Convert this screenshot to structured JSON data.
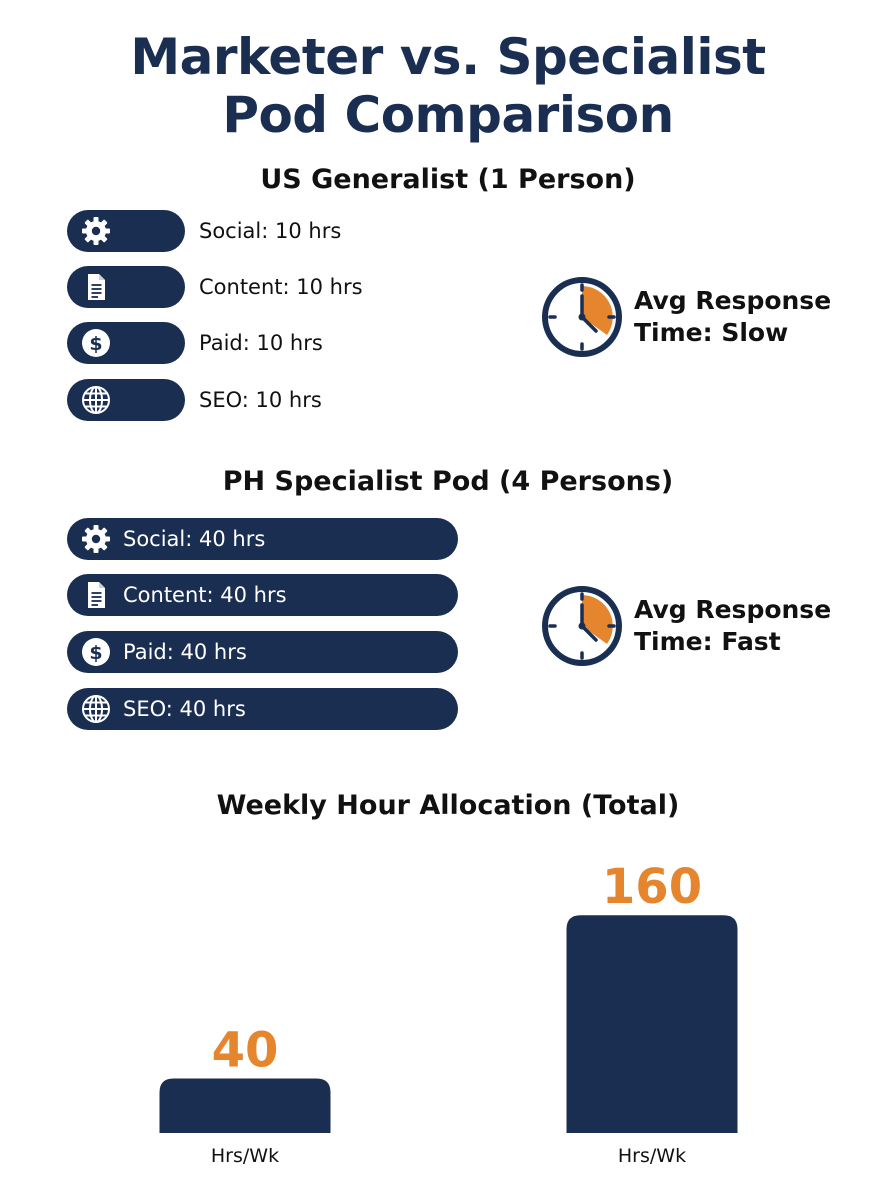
{
  "title_line1": "Marketer vs. Specialist",
  "title_line2": "Pod Comparison",
  "colors": {
    "navy": "#1a2e52",
    "orange": "#e5862f"
  },
  "us": {
    "title": "US Generalist (1 Person)",
    "items": [
      {
        "icon": "gear-icon",
        "label": "Social: 10 hrs",
        "hours": 10
      },
      {
        "icon": "document-icon",
        "label": "Content: 10 hrs",
        "hours": 10
      },
      {
        "icon": "dollar-icon",
        "label": "Paid: 10 hrs",
        "hours": 10
      },
      {
        "icon": "globe-icon",
        "label": "SEO: 10 hrs",
        "hours": 10
      }
    ],
    "response_line1": "Avg Response",
    "response_line2": "Time: Slow"
  },
  "ph": {
    "title": "PH Specialist Pod (4 Persons)",
    "items": [
      {
        "icon": "gear-icon",
        "label": "Social: 40 hrs",
        "hours": 40
      },
      {
        "icon": "document-icon",
        "label": "Content: 40 hrs",
        "hours": 40
      },
      {
        "icon": "dollar-icon",
        "label": "Paid: 40 hrs",
        "hours": 40
      },
      {
        "icon": "globe-icon",
        "label": "SEO: 40 hrs",
        "hours": 40
      }
    ],
    "response_line1": "Avg Response",
    "response_line2": "Time: Fast"
  },
  "chart_data": {
    "type": "bar",
    "title": "Weekly Hour Allocation (Total)",
    "categories": [
      "Hrs/Wk",
      "Hrs/Wk"
    ],
    "values": [
      40,
      160
    ],
    "data_labels": [
      "40",
      "160"
    ],
    "ylim": [
      0,
      180
    ],
    "grid": false,
    "bar_color": "#1a2e52",
    "label_color": "#e5862f"
  }
}
